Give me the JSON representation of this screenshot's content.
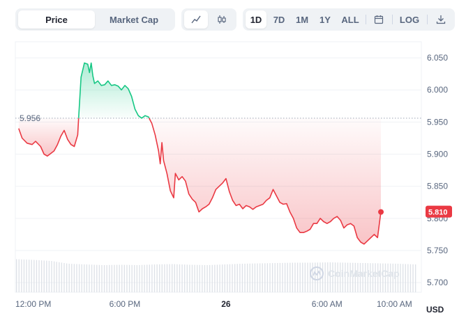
{
  "toolbar": {
    "metric_tabs": [
      "Price",
      "Market Cap"
    ],
    "active_metric": "Price",
    "chart_type_icons": [
      "line-chart-icon",
      "candlestick-icon"
    ],
    "ranges": [
      "1D",
      "7D",
      "1M",
      "1Y",
      "ALL"
    ],
    "active_range": "1D",
    "calendar_icon": "calendar-icon",
    "log_label": "LOG",
    "download_icon": "download-icon"
  },
  "colors": {
    "up": "#16c784",
    "down": "#ea3943",
    "grid": "#eff2f5",
    "text": "#58667e"
  },
  "watermark": "CoinMarketCap",
  "currency_label": "USD",
  "chart_data": {
    "type": "line",
    "title": "",
    "reference_price": 5.956,
    "reference_label": "5.956",
    "last_price": 5.81,
    "last_label": "5.810",
    "ylim": [
      5.685,
      6.075
    ],
    "y_ticks": [
      6.05,
      6.0,
      5.95,
      5.9,
      5.85,
      5.8,
      5.75,
      5.7
    ],
    "y_tick_labels": [
      "6.050",
      "6.000",
      "5.950",
      "5.900",
      "5.850",
      "5.800",
      "5.750",
      "5.700"
    ],
    "x_ticks": [
      {
        "label": "12:00 PM",
        "t": 0.0
      },
      {
        "label": "6:00 PM",
        "t": 6.0
      },
      {
        "label": "26",
        "t": 12.0
      },
      {
        "label": "6:00 AM",
        "t": 18.0
      },
      {
        "label": "10:00 AM",
        "t": 22.0
      }
    ],
    "xlim": [
      -0.5,
      23.6
    ],
    "series": [
      {
        "values": [
          [
            -0.3,
            5.94
          ],
          [
            -0.1,
            5.925
          ],
          [
            0.2,
            5.917
          ],
          [
            0.5,
            5.915
          ],
          [
            0.7,
            5.92
          ],
          [
            1.0,
            5.912
          ],
          [
            1.2,
            5.9
          ],
          [
            1.4,
            5.897
          ],
          [
            1.6,
            5.901
          ],
          [
            1.8,
            5.905
          ],
          [
            2.0,
            5.915
          ],
          [
            2.2,
            5.928
          ],
          [
            2.4,
            5.937
          ],
          [
            2.6,
            5.923
          ],
          [
            2.8,
            5.915
          ],
          [
            3.0,
            5.912
          ],
          [
            3.2,
            5.93
          ],
          [
            3.4,
            6.02
          ],
          [
            3.6,
            6.042
          ],
          [
            3.8,
            6.04
          ],
          [
            3.9,
            6.027
          ],
          [
            4.0,
            6.042
          ],
          [
            4.1,
            6.022
          ],
          [
            4.2,
            6.01
          ],
          [
            4.4,
            6.014
          ],
          [
            4.6,
            6.007
          ],
          [
            4.8,
            6.008
          ],
          [
            5.0,
            6.014
          ],
          [
            5.2,
            6.007
          ],
          [
            5.4,
            6.008
          ],
          [
            5.6,
            6.006
          ],
          [
            5.8,
            6.0
          ],
          [
            6.0,
            6.007
          ],
          [
            6.2,
            6.002
          ],
          [
            6.4,
            5.99
          ],
          [
            6.6,
            5.97
          ],
          [
            6.8,
            5.96
          ],
          [
            7.0,
            5.956
          ],
          [
            7.2,
            5.96
          ],
          [
            7.4,
            5.958
          ],
          [
            7.6,
            5.948
          ],
          [
            7.8,
            5.93
          ],
          [
            8.0,
            5.905
          ],
          [
            8.1,
            5.885
          ],
          [
            8.2,
            5.918
          ],
          [
            8.3,
            5.89
          ],
          [
            8.5,
            5.87
          ],
          [
            8.7,
            5.843
          ],
          [
            8.9,
            5.832
          ],
          [
            9.0,
            5.87
          ],
          [
            9.2,
            5.86
          ],
          [
            9.4,
            5.865
          ],
          [
            9.6,
            5.858
          ],
          [
            9.8,
            5.838
          ],
          [
            10.0,
            5.83
          ],
          [
            10.2,
            5.825
          ],
          [
            10.4,
            5.81
          ],
          [
            10.6,
            5.815
          ],
          [
            10.8,
            5.818
          ],
          [
            11.0,
            5.822
          ],
          [
            11.2,
            5.832
          ],
          [
            11.4,
            5.845
          ],
          [
            11.6,
            5.85
          ],
          [
            11.8,
            5.855
          ],
          [
            12.0,
            5.862
          ],
          [
            12.2,
            5.842
          ],
          [
            12.4,
            5.828
          ],
          [
            12.6,
            5.82
          ],
          [
            12.8,
            5.822
          ],
          [
            13.0,
            5.815
          ],
          [
            13.2,
            5.82
          ],
          [
            13.4,
            5.818
          ],
          [
            13.6,
            5.814
          ],
          [
            13.8,
            5.818
          ],
          [
            14.0,
            5.82
          ],
          [
            14.2,
            5.822
          ],
          [
            14.4,
            5.828
          ],
          [
            14.6,
            5.832
          ],
          [
            14.8,
            5.845
          ],
          [
            15.0,
            5.835
          ],
          [
            15.2,
            5.825
          ],
          [
            15.4,
            5.822
          ],
          [
            15.6,
            5.823
          ],
          [
            15.8,
            5.81
          ],
          [
            16.0,
            5.8
          ],
          [
            16.2,
            5.785
          ],
          [
            16.4,
            5.778
          ],
          [
            16.6,
            5.778
          ],
          [
            16.8,
            5.78
          ],
          [
            17.0,
            5.783
          ],
          [
            17.2,
            5.792
          ],
          [
            17.4,
            5.792
          ],
          [
            17.6,
            5.8
          ],
          [
            17.8,
            5.795
          ],
          [
            18.0,
            5.792
          ],
          [
            18.2,
            5.795
          ],
          [
            18.4,
            5.8
          ],
          [
            18.6,
            5.803
          ],
          [
            18.8,
            5.797
          ],
          [
            19.0,
            5.785
          ],
          [
            19.2,
            5.79
          ],
          [
            19.4,
            5.792
          ],
          [
            19.6,
            5.788
          ],
          [
            19.8,
            5.77
          ],
          [
            20.0,
            5.763
          ],
          [
            20.2,
            5.76
          ],
          [
            20.4,
            5.765
          ],
          [
            20.6,
            5.77
          ],
          [
            20.8,
            5.775
          ],
          [
            21.0,
            5.77
          ],
          [
            21.2,
            5.81
          ]
        ]
      }
    ],
    "volume_note": "volume bars (relative heights, unlabeled)",
    "volume": [
      0.95,
      0.93,
      0.9,
      0.82,
      0.8,
      0.78,
      0.79,
      0.78,
      0.8,
      0.81,
      0.79,
      0.78,
      0.8,
      0.82,
      0.83,
      0.84,
      0.85,
      0.85,
      0.86,
      0.85,
      0.84,
      0.83,
      0.82,
      0.8
    ]
  }
}
